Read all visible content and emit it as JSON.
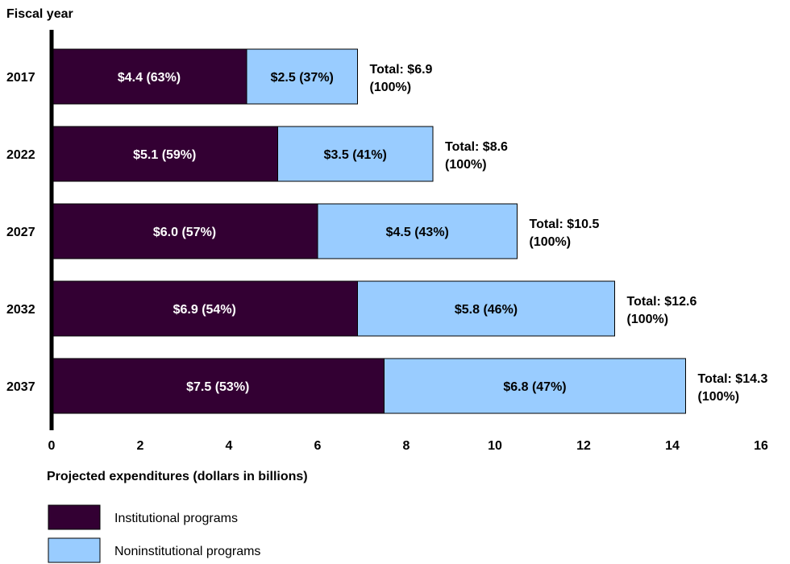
{
  "chart_data": {
    "type": "bar",
    "orientation": "horizontal",
    "stacked": true,
    "ylabel": "Fiscal year",
    "xlabel": "Projected expenditures (dollars in billions)",
    "xlim": [
      0,
      16
    ],
    "xticks": [
      0,
      2,
      4,
      6,
      8,
      10,
      12,
      14,
      16
    ],
    "grid": false,
    "legend_position": "bottom-left",
    "categories": [
      "2017",
      "2022",
      "2027",
      "2032",
      "2037"
    ],
    "series": [
      {
        "name": "Institutional programs",
        "color": "#330033",
        "values": [
          4.4,
          5.1,
          6.0,
          6.9,
          7.5
        ],
        "labels": [
          "$4.4 (63%)",
          "$5.1 (59%)",
          "$6.0 (57%)",
          "$6.9 (54%)",
          "$7.5 (53%)"
        ]
      },
      {
        "name": "Noninstitutional programs",
        "color": "#99ccff",
        "values": [
          2.5,
          3.5,
          4.5,
          5.8,
          6.8
        ],
        "labels": [
          "$2.5 (37%)",
          "$3.5 (41%)",
          "$4.5 (43%)",
          "$5.8 (46%)",
          "$6.8 (47%)"
        ]
      }
    ],
    "totals": [
      {
        "line1": "Total: $6.9",
        "line2": "(100%)"
      },
      {
        "line1": "Total: $8.6",
        "line2": "(100%)"
      },
      {
        "line1": "Total: $10.5",
        "line2": "(100%)"
      },
      {
        "line1": "Total: $12.6",
        "line2": "(100%)"
      },
      {
        "line1": "Total: $14.3",
        "line2": "(100%)"
      }
    ]
  }
}
